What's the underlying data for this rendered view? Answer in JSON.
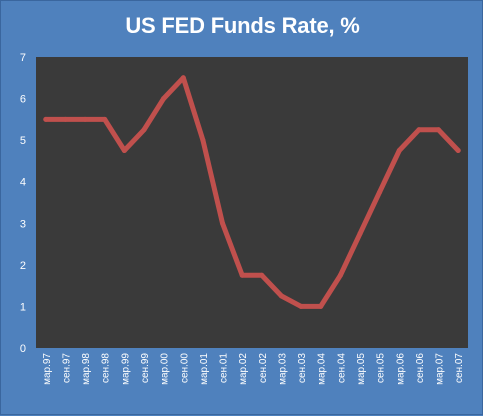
{
  "chart_data": {
    "type": "line",
    "title": "US FED Funds Rate, %",
    "xlabel": "",
    "ylabel": "",
    "ylim": [
      0,
      7
    ],
    "yticks": [
      "0",
      "1",
      "2",
      "3",
      "4",
      "5",
      "6",
      "7"
    ],
    "grid": false,
    "legend": "none",
    "x": [
      "мар.97",
      "сен.97",
      "мар.98",
      "сен.98",
      "мар.99",
      "сен.99",
      "мар.00",
      "сен.00",
      "мар.01",
      "сен.01",
      "мар.02",
      "сен.02",
      "мар.03",
      "сен.03",
      "мар.04",
      "сен.04",
      "мар.05",
      "сен.05",
      "мар.06",
      "сен.06",
      "мар.07",
      "сен.07"
    ],
    "series": [
      {
        "name": "",
        "color": "#c0504d",
        "values": [
          5.5,
          5.5,
          5.5,
          5.5,
          4.75,
          5.25,
          6.0,
          6.5,
          5.0,
          3.0,
          1.75,
          1.75,
          1.25,
          1.0,
          1.0,
          1.75,
          2.75,
          3.75,
          4.75,
          5.25,
          5.25,
          4.75
        ]
      }
    ]
  },
  "colors": {
    "background": "#4f81bd",
    "plot_area": "#3a3a3a",
    "line": "#c0504d"
  }
}
